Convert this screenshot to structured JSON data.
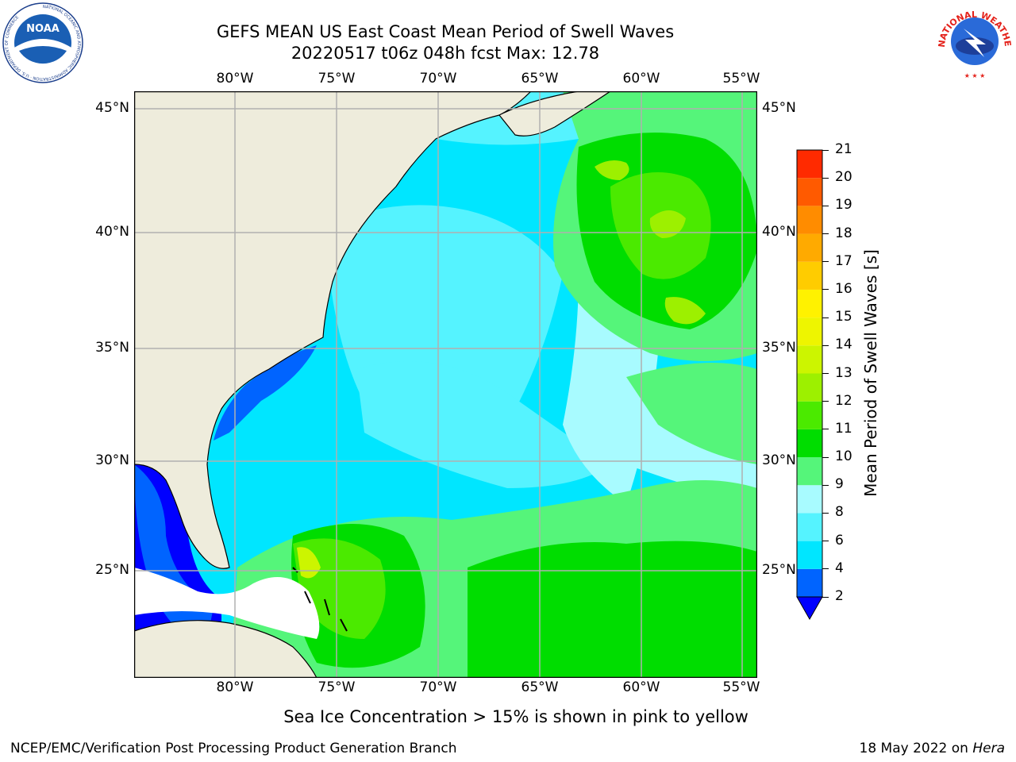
{
  "header": {
    "title_line1": "GEFS MEAN US East Coast Mean Period of Swell Waves",
    "title_line2": "20220517 t06z 048h fcst   Max: 12.78"
  },
  "logos": {
    "noaa": {
      "text": "NOAA",
      "ring_text": "NATIONAL OCEANIC AND ATMOSPHERIC ADMINISTRATION · U.S. DEPARTMENT OF COMMERCE"
    },
    "nws": {
      "ring_text": "NATIONAL WEATHER SERVICE"
    }
  },
  "map": {
    "lon_labels": [
      "80°W",
      "75°W",
      "70°W",
      "65°W",
      "60°W",
      "55°W"
    ],
    "lat_labels": [
      "45°N",
      "40°N",
      "35°N",
      "30°N",
      "25°N"
    ],
    "extent": {
      "lon_min": -84.5,
      "lon_max": -54.5,
      "lat_min": 20.5,
      "lat_max": 45.8
    },
    "land_color": "#eeecdc",
    "grid_color": "#b0b0b0"
  },
  "colorbar": {
    "label": "Mean Period of Swell Waves [s]",
    "ticks": [
      "21",
      "20",
      "19",
      "18",
      "17",
      "16",
      "15",
      "14",
      "13",
      "12",
      "11",
      "10",
      "9",
      "8",
      "6",
      "4",
      "2"
    ],
    "levels": [
      2,
      4,
      6,
      8,
      9,
      10,
      11,
      12,
      13,
      14,
      15,
      16,
      17,
      18,
      19,
      20,
      21
    ],
    "colors": [
      "#0064ff",
      "#00e6ff",
      "#55f3ff",
      "#a8fbff",
      "#55f57a",
      "#00dd00",
      "#4bea00",
      "#9df000",
      "#ccf500",
      "#eef500",
      "#fff200",
      "#ffcc00",
      "#ffaa00",
      "#ff8c00",
      "#ff5a00",
      "#ff2a00"
    ],
    "under_color": "#0000ff"
  },
  "caption": "Sea Ice Concentration > 15% is shown in pink to yellow",
  "footer": {
    "left": "NCEP/EMC/Verification Post Processing Product Generation Branch",
    "right_prefix": "18 May 2022 on ",
    "right_machine": "Hera"
  }
}
